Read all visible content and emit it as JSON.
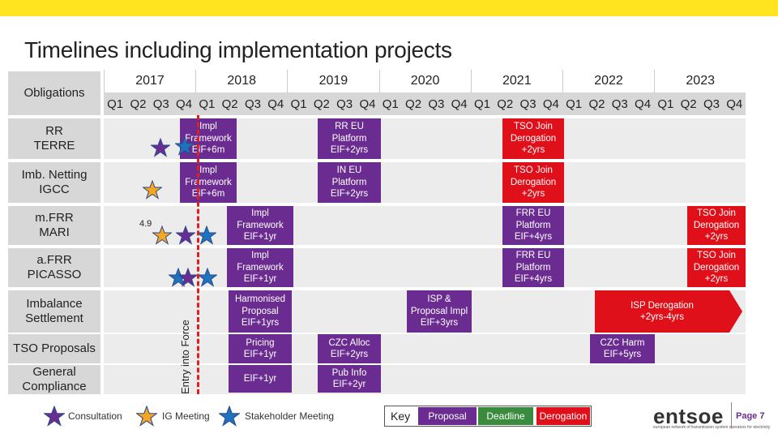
{
  "title": "Timelines including implementation projects",
  "header": {
    "obligations_label": "Obligations",
    "years": [
      "2017",
      "2018",
      "2019",
      "2020",
      "2021",
      "2022",
      "2023"
    ],
    "quarters": [
      "Q1",
      "Q2",
      "Q3",
      "Q4"
    ]
  },
  "rows": [
    {
      "label": "RR\nTERRE"
    },
    {
      "label": "Imb. Netting\nIGCC"
    },
    {
      "label": "m.FRR\nMARI"
    },
    {
      "label": "a.FRR\nPICASSO"
    },
    {
      "label": "Imbalance\nSettlement"
    },
    {
      "label": "TSO Proposals"
    },
    {
      "label": "General\nCompliance"
    }
  ],
  "boxes": {
    "rr_impl": "Impl\nFramework\nEIF+6m",
    "rr_platform": "RR EU\nPlatform\nEIF+2yrs",
    "rr_derog": "TSO Join\nDerogation\n+2yrs",
    "in_impl": "Impl\nFramework\nEIF+6m",
    "in_platform": "IN EU\nPlatform\nEIF+2yrs",
    "in_derog": "TSO Join\nDerogation\n+2yrs",
    "mfrr_impl": "Impl\nFramework\nEIF+1yr",
    "mfrr_platform": "FRR EU\nPlatform\nEIF+4yrs",
    "mfrr_derog": "TSO Join\nDerogation\n+2yrs",
    "afrr_impl": "Impl\nFramework\nEIF+1yr",
    "afrr_platform": "FRR EU\nPlatform\nEIF+4yrs",
    "afrr_derog": "TSO Join\nDerogation\n+2yrs",
    "isp_harmonised": "Harmonised\nProposal\nEIF+1yrs",
    "isp_impl": "ISP &\nProposal Impl\nEIF+3yrs",
    "isp_derog": "ISP Derogation\n+2yrs-4yrs",
    "tso_pricing": "Pricing\nEIF+1yr",
    "tso_czc_alloc": "CZC Alloc\nEIF+2yrs",
    "tso_czc_harm": "CZC Harm\nEIF+5yrs",
    "gc_eif": "EIF+1yr",
    "gc_pub": "Pub Info\nEIF+2yr"
  },
  "annotation_49": "4.9",
  "entry_into_force": "Entry into Force",
  "legend": {
    "consultation": "Consultation",
    "ig_meeting": "IG Meeting",
    "stakeholder_meeting": "Stakeholder Meeting",
    "key": "Key",
    "proposal": "Proposal",
    "deadline": "Deadline",
    "derogation": "Derogation"
  },
  "colors": {
    "proposal": "#6b2c91",
    "deadline": "#3a8b3e",
    "derogation": "#e0101a",
    "topbar": "#ffe41f",
    "consultation_star": "#6b2c91",
    "ig_star": "#f5a623",
    "stakeholder_star": "#1e73be"
  },
  "icons": {
    "consultation": "purple-star-icon",
    "ig_meeting": "orange-star-icon",
    "stakeholder": "blue-star-icon"
  },
  "logo": "entsoe",
  "logo_tagline": "european network of transmission system operators for electricity",
  "page": "Page 7"
}
